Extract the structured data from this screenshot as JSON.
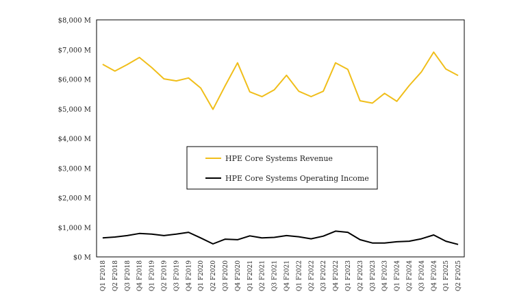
{
  "chart_data": {
    "type": "line",
    "categories": [
      "Q1 F2018",
      "Q2 F2018",
      "Q3 F2018",
      "Q4 F2018",
      "Q1 F2019",
      "Q2 F2019",
      "Q3 F2019",
      "Q4 F2019",
      "Q1 F2020",
      "Q2 F2020",
      "Q3 F2020",
      "Q4 F2020",
      "Q1 F2021",
      "Q2 F2021",
      "Q3 F2021",
      "Q4 F2021",
      "Q1 F2022",
      "Q2 F2022",
      "Q3 F2022",
      "Q4 F2022",
      "Q1 F2023",
      "Q2 F2023",
      "Q3 F2023",
      "Q4 F2023",
      "Q1 F2024",
      "Q2 F2024",
      "Q3 F2024",
      "Q4 F2024",
      "Q1 F2025",
      "Q2 F2025"
    ],
    "series": [
      {
        "name": "HPE Core Systems Revenue",
        "color": "#F0BE1A",
        "values": [
          6500,
          6270,
          6490,
          6730,
          6390,
          6010,
          5940,
          6040,
          5700,
          4980,
          5780,
          6550,
          5570,
          5410,
          5640,
          6130,
          5590,
          5410,
          5590,
          6550,
          6330,
          5270,
          5190,
          5520,
          5250,
          5780,
          6240,
          6910,
          6340,
          6120
        ]
      },
      {
        "name": "HPE Core Systems Operating Income",
        "color": "#000000",
        "values": [
          640,
          670,
          720,
          790,
          770,
          720,
          770,
          830,
          640,
          440,
          600,
          580,
          710,
          640,
          660,
          720,
          680,
          610,
          700,
          870,
          830,
          580,
          470,
          470,
          510,
          530,
          610,
          740,
          530,
          420
        ]
      }
    ],
    "y_ticks": [
      "$0 M",
      "$1,000 M",
      "$2,000 M",
      "$3,000 M",
      "$4,000 M",
      "$5,000 M",
      "$6,000 M",
      "$7,000 M",
      "$8,000 M"
    ],
    "ylim": [
      0,
      8000
    ],
    "grid": false,
    "legend_position": "center",
    "title": "",
    "xlabel": "",
    "ylabel": ""
  }
}
